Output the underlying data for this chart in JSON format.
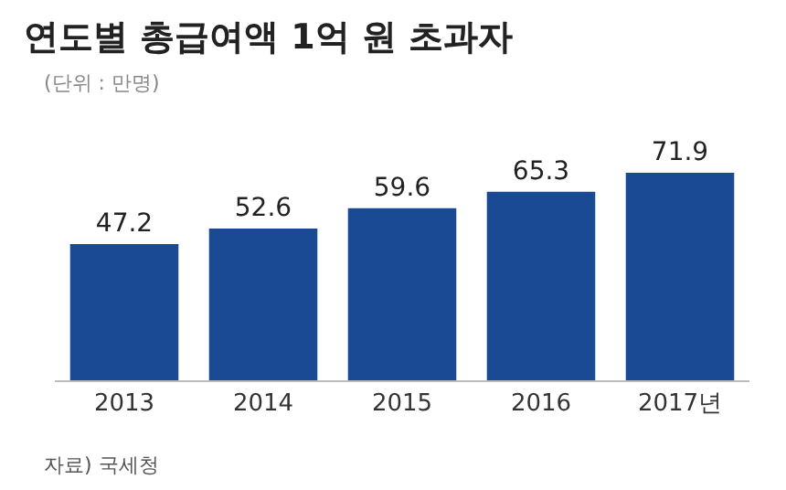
{
  "chart_data": {
    "type": "bar",
    "title": "연도별 총급여액 1억 원 초과자",
    "subtitle": "(단위 : 만명)",
    "categories": [
      "2013",
      "2014",
      "2015",
      "2016",
      "2017년"
    ],
    "values": [
      47.2,
      52.6,
      59.6,
      65.3,
      71.9
    ],
    "color": "#1b4a94",
    "data_labels": true,
    "annotations": [
      "자료) 국세청"
    ]
  }
}
